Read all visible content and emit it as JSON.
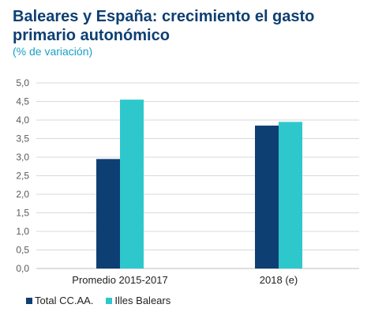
{
  "chart_data": {
    "type": "bar",
    "title": "Baleares y España: crecimiento el gasto primario autonómico",
    "subtitle": "(% de variación)",
    "categories": [
      "Promedio 2015-2017",
      "2018 (e)"
    ],
    "series": [
      {
        "name": "Total CC.AA.",
        "color": "#0e3f73",
        "values": [
          2.95,
          3.85
        ]
      },
      {
        "name": "Illes Balears",
        "color": "#2ec8cc",
        "values": [
          4.55,
          3.95
        ]
      }
    ],
    "ylim": [
      0,
      5
    ],
    "yticks": [
      "0,0",
      "0,5",
      "1,0",
      "1,5",
      "2,0",
      "2,5",
      "3,0",
      "3,5",
      "4,0",
      "4,5",
      "5,0"
    ],
    "grid": true,
    "legend": "bottom-left",
    "xlabel": "",
    "ylabel": ""
  }
}
